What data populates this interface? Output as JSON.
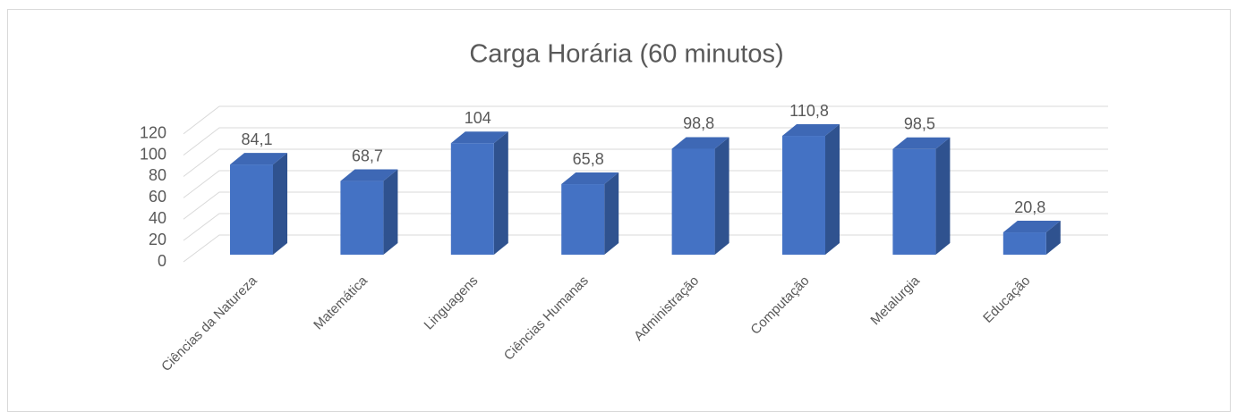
{
  "chart_data": {
    "type": "bar3d",
    "title": "Carga Horária (60 minutos)",
    "categories": [
      "Ciências da Natureza",
      "Matemática",
      "Linguagens",
      "Ciências Humanas",
      "Administração",
      "Computação",
      "Metalurgia",
      "Educação"
    ],
    "values": [
      84.1,
      68.7,
      104,
      65.8,
      98.8,
      110.8,
      98.5,
      20.8
    ],
    "value_labels": [
      "84,1",
      "68,7",
      "104",
      "65,8",
      "98,8",
      "110,8",
      "98,5",
      "20,8"
    ],
    "color": "#4472c4",
    "ylim": [
      0,
      120
    ],
    "yticks": [
      0,
      20,
      40,
      60,
      80,
      100,
      120
    ],
    "grid": true
  }
}
